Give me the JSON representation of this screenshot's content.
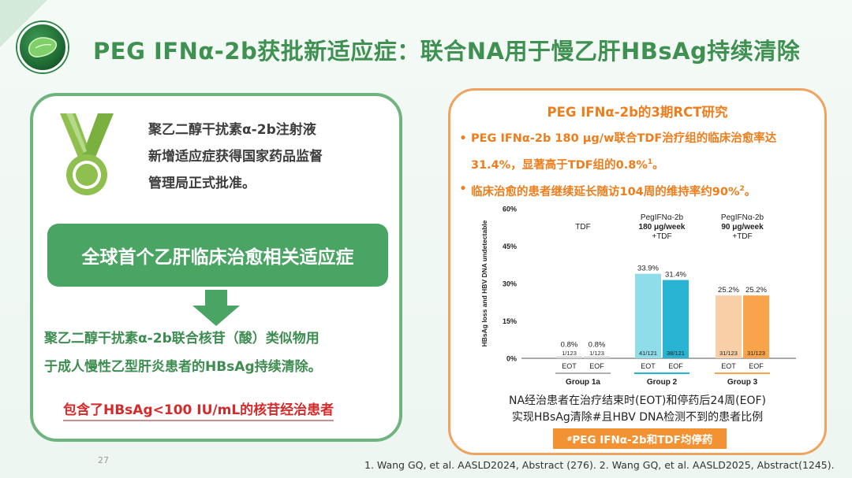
{
  "header": {
    "title": "PEG IFNα-2b获批新适应症：联合NA用于慢乙肝HBsAg持续清除"
  },
  "left_panel": {
    "intro_lines": [
      "聚乙二醇干扰素α-2b注射液",
      "新增适应症获得国家药品监督",
      "管理局正式批准。"
    ],
    "banner": "全球首个乙肝临床治愈相关适应症",
    "indication_lines": [
      "聚乙二醇干扰素α-2b联合核苷（酸）类似物用",
      "于成人慢性乙型肝炎患者的HBsAg持续清除。"
    ],
    "note": "包含了HBsAg<100 IU/mL的核苷经治患者"
  },
  "right_panel": {
    "title": "PEG IFNα-2b的3期RCT研究",
    "bullet_marker": "•",
    "bullets": [
      {
        "text": "PEG IFNα-2b 180 μg/w联合TDF治疗组的临床治愈率达31.4%，显著高于TDF组的0.8%",
        "sup": "1",
        "tail": "。"
      },
      {
        "text": "临床治愈的患者继续延长随访104周的维持率约90%",
        "sup": "2",
        "tail": "。"
      }
    ],
    "caption_lines": [
      "NA经治患者在治疗结束时(EOT)和停药后24周(EOF)",
      "实现HBsAg清除#且HBV DNA检测不到的患者比例"
    ],
    "badge_mark": "#",
    "badge": "PEG IFNα-2b和TDF均停药"
  },
  "chart_data": {
    "type": "bar",
    "ylabel": "HBsAg loss and HBV DNA undetectable",
    "ylim": [
      0,
      60
    ],
    "yticks": [
      "0%",
      "15%",
      "30%",
      "45%",
      "60%"
    ],
    "groups": [
      {
        "name": "Group 1a",
        "header": [
          "TDF"
        ],
        "header_bold": [
          false
        ],
        "bars": [
          {
            "label": "EOT",
            "value": 0.8,
            "value_label": "0.8%",
            "count": "1/123",
            "color": "#d9d9d9"
          },
          {
            "label": "EOF",
            "value": 0.8,
            "value_label": "0.8%",
            "count": "1/123",
            "color": "#d9d9d9"
          }
        ],
        "underline_color": "#b0b0b0"
      },
      {
        "name": "Group 2",
        "header": [
          "PegIFNα-2b",
          "180 μg/week",
          "+TDF"
        ],
        "header_bold": [
          false,
          true,
          false
        ],
        "bars": [
          {
            "label": "EOT",
            "value": 33.9,
            "value_label": "33.9%",
            "count": "41/121",
            "color": "#8fdde8"
          },
          {
            "label": "EOF",
            "value": 31.4,
            "value_label": "31.4%",
            "count": "38/121",
            "color": "#29b3d2"
          }
        ],
        "underline_color": "#29b3d2"
      },
      {
        "name": "Group 3",
        "header": [
          "PegIFNα-2b",
          "90 μg/week",
          "+TDF"
        ],
        "header_bold": [
          false,
          true,
          false
        ],
        "bars": [
          {
            "label": "EOT",
            "value": 25.2,
            "value_label": "25.2%",
            "count": "31/123",
            "color": "#f9cfa8"
          },
          {
            "label": "EOF",
            "value": 25.2,
            "value_label": "25.2%",
            "count": "31/123",
            "color": "#f8a44a"
          }
        ],
        "underline_color": "#f8a44a"
      }
    ]
  },
  "footer": {
    "page_number": "27",
    "references": "1. Wang GQ, et al. AASLD2024, Abstract (276). 2. Wang GQ, et al. AASLD2025, Abstract(1245)."
  }
}
